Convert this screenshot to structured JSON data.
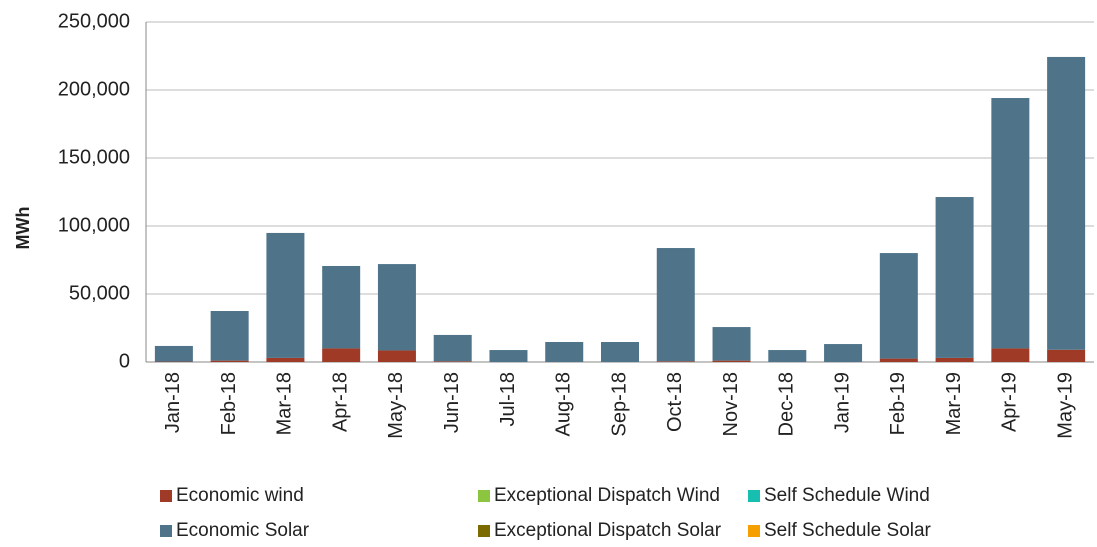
{
  "chart_data": {
    "type": "stacked-bar",
    "y_label": "MWh",
    "categories": [
      "Jan-18",
      "Feb-18",
      "Mar-18",
      "Apr-18",
      "May-18",
      "Jun-18",
      "Jul-18",
      "Aug-18",
      "Sep-18",
      "Oct-18",
      "Nov-18",
      "Dec-18",
      "Jan-19",
      "Feb-19",
      "Mar-19",
      "Apr-19",
      "May-19"
    ],
    "series": [
      {
        "name": "Economic wind",
        "color": "#9e3a26",
        "values": [
          300,
          1000,
          3000,
          10000,
          8500,
          500,
          0,
          0,
          0,
          500,
          1000,
          0,
          0,
          2500,
          3000,
          10000,
          9000
        ]
      },
      {
        "name": "Economic Solar",
        "color": "#4f7489",
        "values": [
          11500,
          36500,
          91900,
          60600,
          63500,
          19400,
          8800,
          14700,
          14700,
          83300,
          24700,
          8800,
          13200,
          77600,
          118300,
          184100,
          215300
        ]
      },
      {
        "name": "Exceptional Dispatch Wind",
        "color": "#8cc63f",
        "values": [
          0,
          0,
          0,
          0,
          0,
          0,
          0,
          0,
          0,
          0,
          0,
          0,
          0,
          0,
          0,
          0,
          0
        ]
      },
      {
        "name": "Exceptional Dispatch Solar",
        "color": "#7a6a00",
        "values": [
          0,
          0,
          0,
          0,
          0,
          0,
          0,
          0,
          0,
          0,
          0,
          0,
          0,
          0,
          0,
          0,
          0
        ]
      },
      {
        "name": "Self Schedule Wind",
        "color": "#17bfb0",
        "values": [
          0,
          0,
          0,
          0,
          0,
          0,
          0,
          0,
          0,
          0,
          0,
          0,
          0,
          0,
          0,
          0,
          0
        ]
      },
      {
        "name": "Self Schedule Solar",
        "color": "#f5a000",
        "values": [
          0,
          0,
          0,
          0,
          0,
          0,
          0,
          0,
          0,
          0,
          0,
          0,
          0,
          0,
          0,
          0,
          0
        ]
      }
    ],
    "ylim": [
      0,
      250000
    ],
    "yticks": [
      0,
      {
        "value": 50000,
        "label": "50,000"
      },
      {
        "value": 100000,
        "label": "100,000"
      },
      {
        "value": 150000,
        "label": "150,000"
      },
      {
        "value": 200000,
        "label": "200,000"
      },
      {
        "value": 250000,
        "label": "250,000"
      }
    ],
    "grid": true
  }
}
